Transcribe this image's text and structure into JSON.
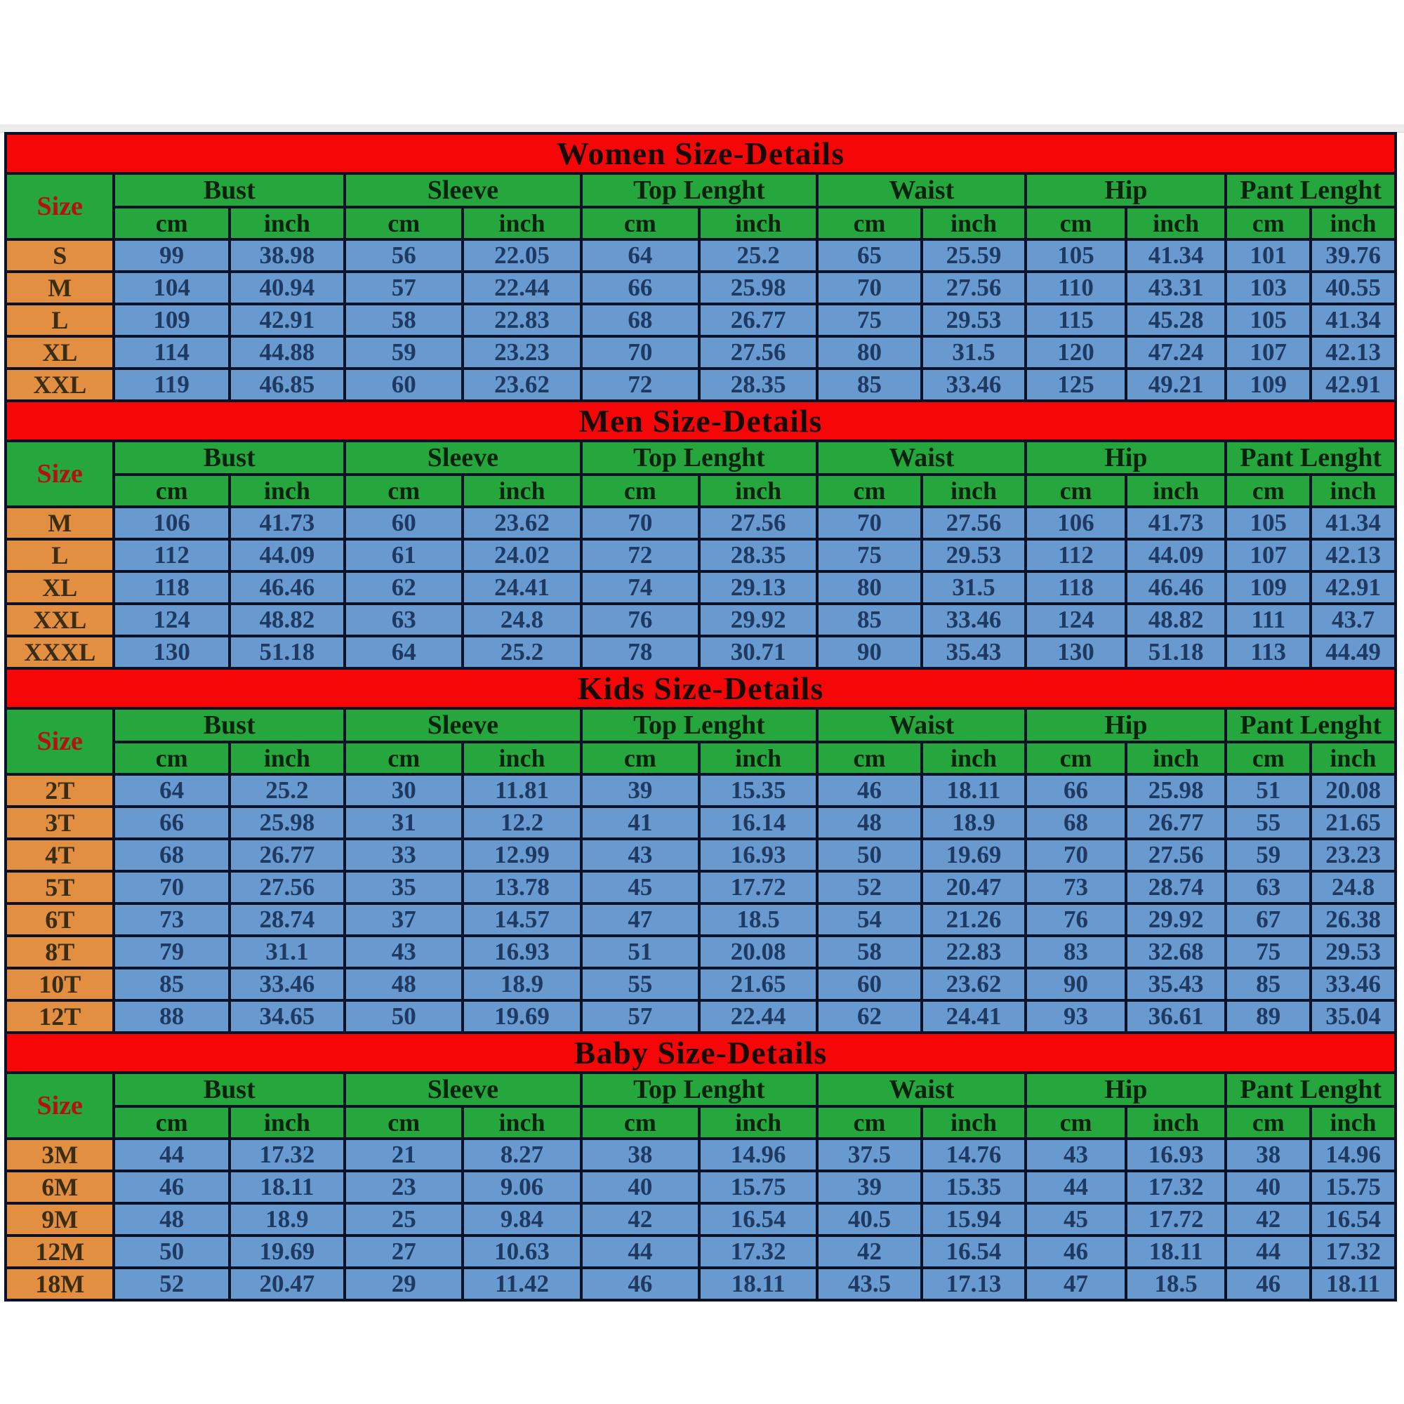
{
  "page_title": "Size-Details Chart",
  "colors": {
    "red": "#f60606",
    "green": "#25a73e",
    "orange": "#e28f41",
    "blue": "#6899cf",
    "border": "#0b1126",
    "value_text": "#1e3a63",
    "size_label_text": "#b51111"
  },
  "size_header": "Size",
  "column_groups": [
    "Bust",
    "Sleeve",
    "Top Lenght",
    "Waist",
    "Hip",
    "Pant Lenght"
  ],
  "units": [
    "cm",
    "inch"
  ],
  "chart_data": [
    {
      "type": "table",
      "title": "Women Size-Details",
      "columns": [
        "Size",
        "Bust cm",
        "Bust inch",
        "Sleeve cm",
        "Sleeve inch",
        "Top Lenght cm",
        "Top Lenght inch",
        "Waist cm",
        "Waist inch",
        "Hip cm",
        "Hip inch",
        "Pant Lenght cm",
        "Pant Lenght inch"
      ],
      "rows": [
        {
          "size": "S",
          "values": [
            "99",
            "38.98",
            "56",
            "22.05",
            "64",
            "25.2",
            "65",
            "25.59",
            "105",
            "41.34",
            "101",
            "39.76"
          ]
        },
        {
          "size": "M",
          "values": [
            "104",
            "40.94",
            "57",
            "22.44",
            "66",
            "25.98",
            "70",
            "27.56",
            "110",
            "43.31",
            "103",
            "40.55"
          ]
        },
        {
          "size": "L",
          "values": [
            "109",
            "42.91",
            "58",
            "22.83",
            "68",
            "26.77",
            "75",
            "29.53",
            "115",
            "45.28",
            "105",
            "41.34"
          ]
        },
        {
          "size": "XL",
          "values": [
            "114",
            "44.88",
            "59",
            "23.23",
            "70",
            "27.56",
            "80",
            "31.5",
            "120",
            "47.24",
            "107",
            "42.13"
          ]
        },
        {
          "size": "XXL",
          "values": [
            "119",
            "46.85",
            "60",
            "23.62",
            "72",
            "28.35",
            "85",
            "33.46",
            "125",
            "49.21",
            "109",
            "42.91"
          ]
        }
      ]
    },
    {
      "type": "table",
      "title": "Men Size-Details",
      "columns": [
        "Size",
        "Bust cm",
        "Bust inch",
        "Sleeve cm",
        "Sleeve inch",
        "Top Lenght cm",
        "Top Lenght inch",
        "Waist cm",
        "Waist inch",
        "Hip cm",
        "Hip inch",
        "Pant Lenght cm",
        "Pant Lenght inch"
      ],
      "rows": [
        {
          "size": "M",
          "values": [
            "106",
            "41.73",
            "60",
            "23.62",
            "70",
            "27.56",
            "70",
            "27.56",
            "106",
            "41.73",
            "105",
            "41.34"
          ]
        },
        {
          "size": "L",
          "values": [
            "112",
            "44.09",
            "61",
            "24.02",
            "72",
            "28.35",
            "75",
            "29.53",
            "112",
            "44.09",
            "107",
            "42.13"
          ]
        },
        {
          "size": "XL",
          "values": [
            "118",
            "46.46",
            "62",
            "24.41",
            "74",
            "29.13",
            "80",
            "31.5",
            "118",
            "46.46",
            "109",
            "42.91"
          ]
        },
        {
          "size": "XXL",
          "values": [
            "124",
            "48.82",
            "63",
            "24.8",
            "76",
            "29.92",
            "85",
            "33.46",
            "124",
            "48.82",
            "111",
            "43.7"
          ]
        },
        {
          "size": "XXXL",
          "values": [
            "130",
            "51.18",
            "64",
            "25.2",
            "78",
            "30.71",
            "90",
            "35.43",
            "130",
            "51.18",
            "113",
            "44.49"
          ]
        }
      ]
    },
    {
      "type": "table",
      "title": "Kids Size-Details",
      "columns": [
        "Size",
        "Bust cm",
        "Bust inch",
        "Sleeve cm",
        "Sleeve inch",
        "Top Lenght cm",
        "Top Lenght inch",
        "Waist cm",
        "Waist inch",
        "Hip cm",
        "Hip inch",
        "Pant Lenght cm",
        "Pant Lenght inch"
      ],
      "rows": [
        {
          "size": "2T",
          "values": [
            "64",
            "25.2",
            "30",
            "11.81",
            "39",
            "15.35",
            "46",
            "18.11",
            "66",
            "25.98",
            "51",
            "20.08"
          ]
        },
        {
          "size": "3T",
          "values": [
            "66",
            "25.98",
            "31",
            "12.2",
            "41",
            "16.14",
            "48",
            "18.9",
            "68",
            "26.77",
            "55",
            "21.65"
          ]
        },
        {
          "size": "4T",
          "values": [
            "68",
            "26.77",
            "33",
            "12.99",
            "43",
            "16.93",
            "50",
            "19.69",
            "70",
            "27.56",
            "59",
            "23.23"
          ]
        },
        {
          "size": "5T",
          "values": [
            "70",
            "27.56",
            "35",
            "13.78",
            "45",
            "17.72",
            "52",
            "20.47",
            "73",
            "28.74",
            "63",
            "24.8"
          ]
        },
        {
          "size": "6T",
          "values": [
            "73",
            "28.74",
            "37",
            "14.57",
            "47",
            "18.5",
            "54",
            "21.26",
            "76",
            "29.92",
            "67",
            "26.38"
          ]
        },
        {
          "size": "8T",
          "values": [
            "79",
            "31.1",
            "43",
            "16.93",
            "51",
            "20.08",
            "58",
            "22.83",
            "83",
            "32.68",
            "75",
            "29.53"
          ]
        },
        {
          "size": "10T",
          "values": [
            "85",
            "33.46",
            "48",
            "18.9",
            "55",
            "21.65",
            "60",
            "23.62",
            "90",
            "35.43",
            "85",
            "33.46"
          ]
        },
        {
          "size": "12T",
          "values": [
            "88",
            "34.65",
            "50",
            "19.69",
            "57",
            "22.44",
            "62",
            "24.41",
            "93",
            "36.61",
            "89",
            "35.04"
          ]
        }
      ]
    },
    {
      "type": "table",
      "title": "Baby Size-Details",
      "columns": [
        "Size",
        "Bust cm",
        "Bust inch",
        "Sleeve cm",
        "Sleeve inch",
        "Top Lenght cm",
        "Top Lenght inch",
        "Waist cm",
        "Waist inch",
        "Hip cm",
        "Hip inch",
        "Pant Lenght cm",
        "Pant Lenght inch"
      ],
      "rows": [
        {
          "size": "3M",
          "values": [
            "44",
            "17.32",
            "21",
            "8.27",
            "38",
            "14.96",
            "37.5",
            "14.76",
            "43",
            "16.93",
            "38",
            "14.96"
          ]
        },
        {
          "size": "6M",
          "values": [
            "46",
            "18.11",
            "23",
            "9.06",
            "40",
            "15.75",
            "39",
            "15.35",
            "44",
            "17.32",
            "40",
            "15.75"
          ]
        },
        {
          "size": "9M",
          "values": [
            "48",
            "18.9",
            "25",
            "9.84",
            "42",
            "16.54",
            "40.5",
            "15.94",
            "45",
            "17.72",
            "42",
            "16.54"
          ]
        },
        {
          "size": "12M",
          "values": [
            "50",
            "19.69",
            "27",
            "10.63",
            "44",
            "17.32",
            "42",
            "16.54",
            "46",
            "18.11",
            "44",
            "17.32"
          ]
        },
        {
          "size": "18M",
          "values": [
            "52",
            "20.47",
            "29",
            "11.42",
            "46",
            "18.11",
            "43.5",
            "17.13",
            "47",
            "18.5",
            "46",
            "18.11"
          ]
        }
      ]
    }
  ]
}
